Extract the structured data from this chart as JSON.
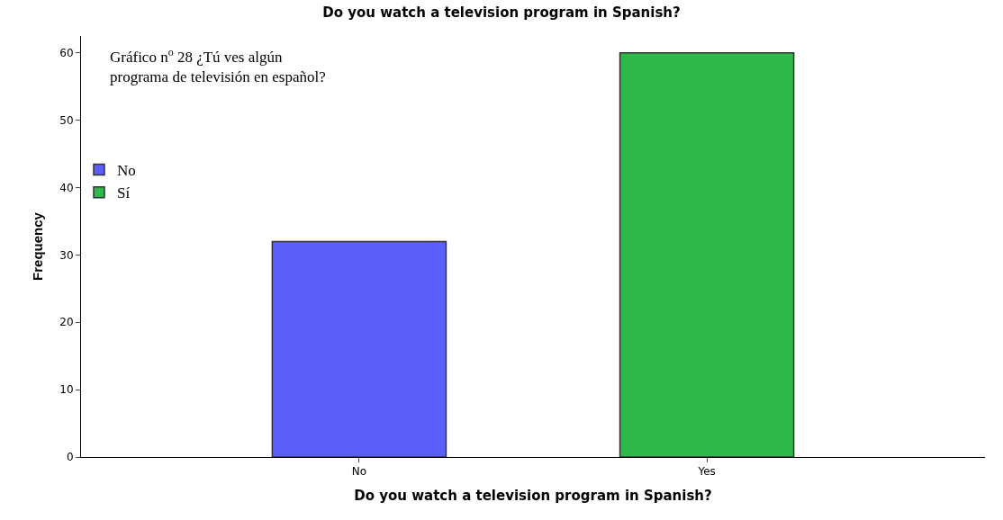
{
  "chart_data": {
    "type": "bar",
    "title": "Do you watch a television program in Spanish?",
    "xlabel": "Do you watch a television program in Spanish?",
    "ylabel": "Frequency",
    "categories": [
      "No",
      "Yes"
    ],
    "series": [
      {
        "name": "No",
        "color": "#5b5ef8",
        "values": [
          32,
          null
        ]
      },
      {
        "name": "Sí",
        "color": "#2eb84b",
        "values": [
          null,
          60
        ]
      }
    ],
    "ylim": [
      0,
      62.5
    ],
    "yticks": [
      0,
      10,
      20,
      30,
      40,
      50,
      60
    ],
    "legend": "top left",
    "annotations": [
      "Gráfico n$^{o}$ 28 ¿Tú ves algún programa de televisión en español?"
    ]
  }
}
